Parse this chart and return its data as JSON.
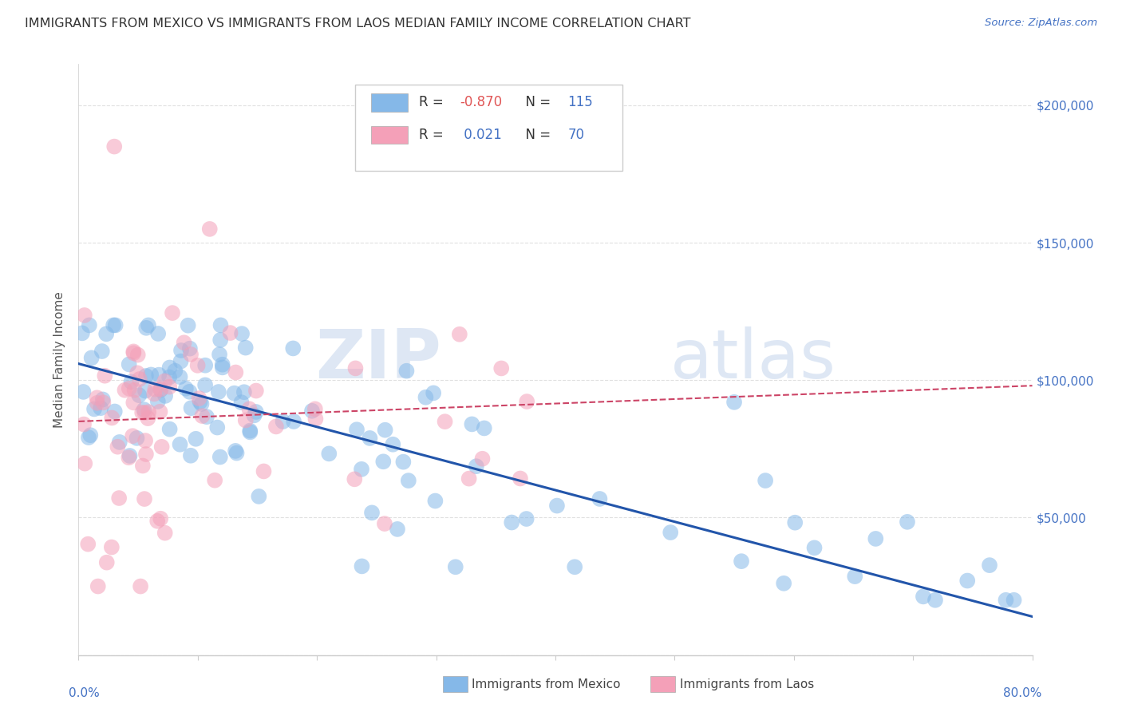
{
  "title": "IMMIGRANTS FROM MEXICO VS IMMIGRANTS FROM LAOS MEDIAN FAMILY INCOME CORRELATION CHART",
  "source": "Source: ZipAtlas.com",
  "ylabel": "Median Family Income",
  "ylim": [
    0,
    215000
  ],
  "xlim": [
    0.0,
    80.0
  ],
  "yticks": [
    0,
    50000,
    100000,
    150000,
    200000
  ],
  "ytick_labels_right": [
    "",
    "$50,000",
    "$100,000",
    "$150,000",
    "$200,000"
  ],
  "mexico_color": "#85b8e8",
  "laos_color": "#f4a0b8",
  "mexico_line_color": "#2255aa",
  "laos_line_color": "#cc4466",
  "background_color": "#ffffff",
  "title_color": "#333333",
  "axis_label_color": "#4472c4",
  "grid_color": "#e0e0e0",
  "mexico_R": -0.87,
  "mexico_N": 115,
  "laos_R": 0.021,
  "laos_N": 70,
  "mexico_line_x0": 0.0,
  "mexico_line_y0": 106000,
  "mexico_line_x1": 80.0,
  "mexico_line_y1": 14000,
  "laos_line_x0": 0.0,
  "laos_line_y0": 85000,
  "laos_line_x1": 80.0,
  "laos_line_y1": 98000
}
